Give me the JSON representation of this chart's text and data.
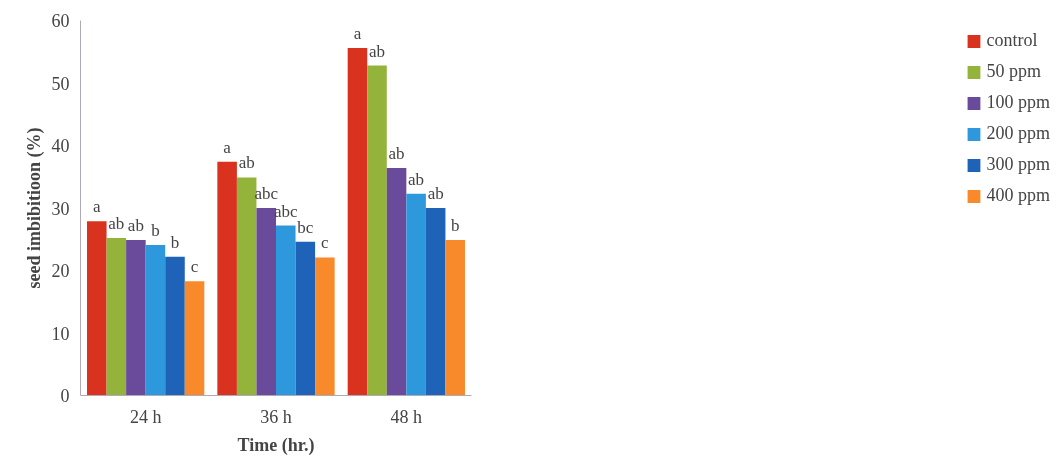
{
  "chart_data": {
    "type": "bar",
    "xlabel": "Time (hr.)",
    "ylabel": "seed imbibitioon (%)",
    "categories": [
      "24 h",
      "36 h",
      "48 h"
    ],
    "series": [
      {
        "name": "control",
        "color": "#d9321f",
        "values": [
          27.9,
          37.4,
          55.6
        ],
        "value_labels": [
          "a",
          "a",
          "a"
        ]
      },
      {
        "name": "50 ppm",
        "color": "#94b33a",
        "values": [
          25.2,
          34.9,
          52.8
        ],
        "value_labels": [
          "ab",
          "ab",
          "ab"
        ]
      },
      {
        "name": "100 ppm",
        "color": "#6a4a9a",
        "values": [
          24.9,
          30.0,
          36.4
        ],
        "value_labels": [
          "ab",
          "abc",
          "ab"
        ]
      },
      {
        "name": "200 ppm",
        "color": "#2e98dc",
        "values": [
          24.1,
          27.2,
          32.3
        ],
        "value_labels": [
          "b",
          "abc",
          "ab"
        ]
      },
      {
        "name": "300 ppm",
        "color": "#1f63b8",
        "values": [
          22.2,
          24.6,
          30.0
        ],
        "value_labels": [
          "b",
          "bc",
          "ab"
        ]
      },
      {
        "name": "400 ppm",
        "color": "#f98a2c",
        "values": [
          18.3,
          22.1,
          24.9
        ],
        "value_labels": [
          "c",
          "c",
          "b"
        ]
      }
    ],
    "ylim": [
      0,
      60
    ],
    "yticks": [
      0,
      10,
      20,
      30,
      40,
      50,
      60
    ],
    "grid": false,
    "legend": "right"
  }
}
